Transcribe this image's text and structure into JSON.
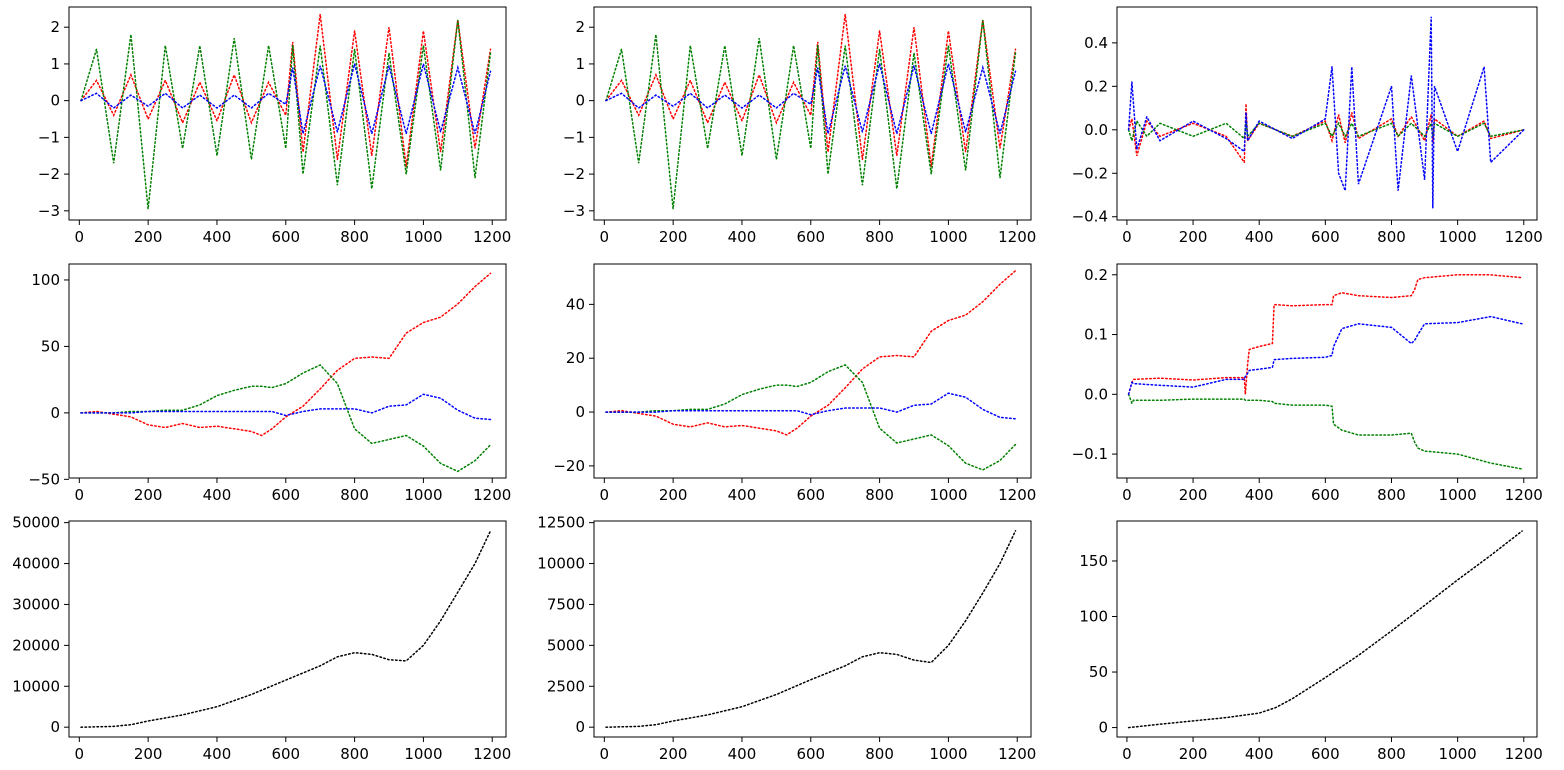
{
  "chart_data": [
    {
      "type": "line",
      "line_style": "dotted",
      "x": [
        5,
        50,
        100,
        150,
        200,
        250,
        300,
        350,
        400,
        450,
        500,
        550,
        600,
        620,
        650,
        700,
        750,
        800,
        850,
        900,
        950,
        1000,
        1050,
        1100,
        1150,
        1195
      ],
      "series": [
        {
          "color": "#ff0000",
          "values": [
            0.0,
            0.55,
            -0.4,
            0.7,
            -0.5,
            0.55,
            -0.6,
            0.5,
            -0.55,
            0.7,
            -0.6,
            0.5,
            -0.4,
            1.6,
            -1.4,
            2.35,
            -1.6,
            1.9,
            -1.5,
            2.0,
            -1.8,
            1.9,
            -1.4,
            2.2,
            -1.3,
            1.4
          ]
        },
        {
          "color": "#008000",
          "values": [
            0.0,
            1.4,
            -1.7,
            1.8,
            -2.95,
            1.5,
            -1.3,
            1.5,
            -1.5,
            1.7,
            -1.6,
            1.5,
            -1.3,
            1.5,
            -2.0,
            1.5,
            -2.3,
            1.4,
            -2.4,
            1.3,
            -2.0,
            1.5,
            -1.9,
            2.2,
            -2.1,
            1.3
          ]
        },
        {
          "color": "#0000ff",
          "values": [
            0.0,
            0.2,
            -0.2,
            0.15,
            -0.15,
            0.2,
            -0.2,
            0.15,
            -0.2,
            0.15,
            -0.2,
            0.2,
            -0.1,
            0.9,
            -0.9,
            0.95,
            -0.85,
            1.0,
            -0.9,
            0.95,
            -0.9,
            1.0,
            -0.85,
            0.9,
            -0.9,
            0.8
          ]
        }
      ],
      "xlim": [
        -30,
        1240
      ],
      "ylim": [
        -3.25,
        2.55
      ],
      "xticks": [
        0,
        200,
        400,
        600,
        800,
        1000,
        1200
      ],
      "yticks": [
        -3,
        -2,
        -1,
        0,
        1,
        2
      ]
    },
    {
      "type": "line",
      "line_style": "dotted",
      "x": [
        5,
        50,
        100,
        150,
        200,
        250,
        300,
        350,
        400,
        450,
        500,
        550,
        600,
        620,
        650,
        700,
        750,
        800,
        850,
        900,
        950,
        1000,
        1050,
        1100,
        1150,
        1195
      ],
      "series": [
        {
          "color": "#ff0000",
          "values": [
            0.0,
            0.55,
            -0.4,
            0.7,
            -0.5,
            0.55,
            -0.6,
            0.5,
            -0.55,
            0.7,
            -0.6,
            0.5,
            -0.4,
            1.6,
            -1.4,
            2.35,
            -1.6,
            1.9,
            -1.5,
            2.0,
            -1.8,
            1.9,
            -1.4,
            2.2,
            -1.3,
            1.4
          ]
        },
        {
          "color": "#008000",
          "values": [
            0.0,
            1.4,
            -1.7,
            1.8,
            -2.95,
            1.5,
            -1.3,
            1.5,
            -1.5,
            1.7,
            -1.6,
            1.5,
            -1.3,
            1.5,
            -2.0,
            1.5,
            -2.3,
            1.4,
            -2.4,
            1.3,
            -2.0,
            1.5,
            -1.9,
            2.2,
            -2.1,
            1.3
          ]
        },
        {
          "color": "#0000ff",
          "values": [
            0.0,
            0.2,
            -0.2,
            0.15,
            -0.15,
            0.2,
            -0.2,
            0.15,
            -0.2,
            0.15,
            -0.2,
            0.2,
            -0.1,
            0.9,
            -0.9,
            0.95,
            -0.85,
            1.0,
            -0.9,
            0.95,
            -0.9,
            1.0,
            -0.85,
            0.9,
            -0.9,
            0.8
          ]
        }
      ],
      "xlim": [
        -30,
        1240
      ],
      "ylim": [
        -3.25,
        2.55
      ],
      "xticks": [
        0,
        200,
        400,
        600,
        800,
        1000,
        1200
      ],
      "yticks": [
        -3,
        -2,
        -1,
        0,
        1,
        2
      ]
    },
    {
      "type": "line",
      "line_style": "dotted",
      "x": [
        5,
        15,
        30,
        60,
        100,
        200,
        300,
        355,
        360,
        365,
        400,
        500,
        600,
        620,
        640,
        660,
        680,
        700,
        800,
        820,
        860,
        900,
        920,
        925,
        930,
        1000,
        1080,
        1100,
        1200
      ],
      "series": [
        {
          "color": "#ff0000",
          "values": [
            0.0,
            0.05,
            -0.12,
            0.04,
            -0.03,
            0.03,
            -0.03,
            -0.15,
            0.12,
            -0.05,
            0.03,
            -0.03,
            0.04,
            -0.05,
            0.07,
            -0.06,
            0.08,
            -0.04,
            0.05,
            -0.03,
            0.06,
            -0.05,
            0.07,
            -0.06,
            0.05,
            -0.03,
            0.04,
            -0.04,
            0.0
          ]
        },
        {
          "color": "#008000",
          "values": [
            0.0,
            -0.05,
            0.04,
            -0.03,
            0.03,
            -0.03,
            0.03,
            -0.04,
            0.04,
            -0.03,
            0.03,
            -0.03,
            0.03,
            -0.03,
            0.03,
            -0.03,
            0.03,
            -0.03,
            0.03,
            -0.03,
            0.03,
            -0.03,
            0.03,
            -0.03,
            0.03,
            -0.03,
            0.03,
            -0.03,
            0.0
          ]
        },
        {
          "color": "#0000ff",
          "values": [
            0.0,
            0.22,
            -0.09,
            0.06,
            -0.05,
            0.04,
            -0.04,
            -0.1,
            0.08,
            -0.05,
            0.04,
            -0.04,
            0.05,
            0.29,
            -0.2,
            -0.28,
            0.29,
            -0.25,
            0.2,
            -0.28,
            0.25,
            -0.23,
            0.52,
            -0.36,
            0.2,
            -0.1,
            0.29,
            -0.15,
            0.0
          ]
        }
      ],
      "xlim": [
        -30,
        1240
      ],
      "ylim": [
        -0.415,
        0.565
      ],
      "xticks": [
        0,
        200,
        400,
        600,
        800,
        1000,
        1200
      ],
      "yticks": [
        -0.4,
        -0.2,
        0.0,
        0.2,
        0.4
      ]
    },
    {
      "type": "line",
      "line_style": "dotted",
      "x": [
        5,
        50,
        100,
        150,
        200,
        250,
        300,
        350,
        400,
        450,
        500,
        530,
        560,
        600,
        650,
        700,
        750,
        800,
        850,
        900,
        950,
        1000,
        1050,
        1100,
        1150,
        1195
      ],
      "series": [
        {
          "color": "#ff0000",
          "values": [
            0,
            1,
            -1,
            -3,
            -9,
            -11,
            -8,
            -11,
            -10,
            -12,
            -14,
            -17,
            -12,
            -3,
            5,
            18,
            32,
            41,
            42,
            41,
            60,
            68,
            72,
            82,
            95,
            105
          ]
        },
        {
          "color": "#008000",
          "values": [
            0,
            0,
            0,
            1,
            1,
            2,
            2,
            6,
            13,
            17,
            20,
            20,
            19,
            22,
            30,
            36,
            22,
            -12,
            -23,
            -20,
            -17,
            -25,
            -38,
            -44,
            -36,
            -24
          ]
        },
        {
          "color": "#0000ff",
          "values": [
            0,
            0,
            0,
            0,
            1,
            1,
            1,
            1,
            1,
            1,
            1,
            1,
            1,
            -2,
            1,
            3,
            3,
            3,
            0,
            5,
            6,
            14,
            11,
            2,
            -4,
            -5
          ]
        }
      ],
      "xlim": [
        -30,
        1240
      ],
      "ylim": [
        -49,
        112
      ],
      "xticks": [
        0,
        200,
        400,
        600,
        800,
        1000,
        1200
      ],
      "yticks": [
        -50,
        0,
        50,
        100
      ]
    },
    {
      "type": "line",
      "line_style": "dotted",
      "x": [
        5,
        50,
        100,
        150,
        200,
        250,
        300,
        350,
        400,
        450,
        500,
        530,
        560,
        600,
        650,
        700,
        750,
        800,
        850,
        900,
        950,
        1000,
        1050,
        1100,
        1150,
        1195
      ],
      "series": [
        {
          "color": "#ff0000",
          "values": [
            0,
            0.5,
            -0.5,
            -1.5,
            -4.5,
            -5.5,
            -4,
            -5.5,
            -5,
            -6,
            -7,
            -8.5,
            -6,
            -1.5,
            2.5,
            9,
            16,
            20.5,
            21,
            20.5,
            30,
            34,
            36,
            41,
            47.5,
            52.5
          ]
        },
        {
          "color": "#008000",
          "values": [
            0,
            0,
            0,
            0.5,
            0.5,
            1,
            1,
            3,
            6.5,
            8.5,
            10,
            10,
            9.5,
            11,
            15,
            17.5,
            11,
            -6,
            -11.5,
            -10,
            -8.5,
            -12.5,
            -19,
            -21.5,
            -18,
            -12
          ]
        },
        {
          "color": "#0000ff",
          "values": [
            0,
            0,
            0,
            0,
            0.5,
            0.5,
            0.5,
            0.5,
            0.5,
            0.5,
            0.5,
            0.5,
            0.5,
            -1,
            0.5,
            1.5,
            1.5,
            1.5,
            0,
            2.5,
            3,
            7,
            5.5,
            1,
            -2,
            -2.5
          ]
        }
      ],
      "xlim": [
        -30,
        1240
      ],
      "ylim": [
        -24.5,
        55
      ],
      "xticks": [
        0,
        200,
        400,
        600,
        800,
        1000,
        1200
      ],
      "yticks": [
        -20,
        0,
        20,
        40
      ]
    },
    {
      "type": "line",
      "line_style": "dotted",
      "x": [
        5,
        15,
        20,
        100,
        200,
        300,
        355,
        358,
        365,
        370,
        400,
        440,
        445,
        500,
        600,
        620,
        625,
        650,
        700,
        800,
        860,
        870,
        880,
        900,
        1000,
        1100,
        1195
      ],
      "series": [
        {
          "color": "#ff0000",
          "values": [
            0.0,
            0.02,
            0.025,
            0.027,
            0.024,
            0.028,
            0.028,
            0.0,
            0.05,
            0.075,
            0.08,
            0.085,
            0.15,
            0.148,
            0.15,
            0.15,
            0.165,
            0.17,
            0.165,
            0.162,
            0.165,
            0.175,
            0.192,
            0.195,
            0.2,
            0.2,
            0.195
          ]
        },
        {
          "color": "#008000",
          "values": [
            0.0,
            -0.015,
            -0.01,
            -0.01,
            -0.008,
            -0.008,
            -0.008,
            -0.01,
            -0.01,
            -0.01,
            -0.01,
            -0.012,
            -0.015,
            -0.018,
            -0.018,
            -0.02,
            -0.05,
            -0.06,
            -0.068,
            -0.068,
            -0.065,
            -0.08,
            -0.09,
            -0.095,
            -0.1,
            -0.115,
            -0.125
          ]
        },
        {
          "color": "#0000ff",
          "values": [
            0.0,
            0.02,
            0.018,
            0.015,
            0.012,
            0.025,
            0.025,
            0.03,
            0.035,
            0.04,
            0.042,
            0.045,
            0.058,
            0.06,
            0.062,
            0.065,
            0.08,
            0.11,
            0.118,
            0.112,
            0.085,
            0.09,
            0.1,
            0.118,
            0.12,
            0.13,
            0.118
          ]
        }
      ],
      "xlim": [
        -30,
        1240
      ],
      "ylim": [
        -0.14,
        0.218
      ],
      "xticks": [
        0,
        200,
        400,
        600,
        800,
        1000,
        1200
      ],
      "yticks": [
        -0.1,
        0.0,
        0.1,
        0.2
      ]
    },
    {
      "type": "line",
      "line_style": "dotted",
      "x": [
        5,
        100,
        150,
        200,
        300,
        400,
        500,
        600,
        700,
        750,
        800,
        850,
        900,
        950,
        1000,
        1050,
        1100,
        1150,
        1195
      ],
      "series": [
        {
          "color": "#000000",
          "values": [
            0,
            200,
            600,
            1500,
            3000,
            5000,
            8000,
            11500,
            15000,
            17200,
            18200,
            17800,
            16500,
            16200,
            20000,
            26000,
            33000,
            40000,
            48000
          ]
        }
      ],
      "xlim": [
        -30,
        1240
      ],
      "ylim": [
        -2400,
        50400
      ],
      "xticks": [
        0,
        200,
        400,
        600,
        800,
        1000,
        1200
      ],
      "yticks": [
        0,
        10000,
        20000,
        30000,
        40000,
        50000
      ]
    },
    {
      "type": "line",
      "line_style": "dotted",
      "x": [
        5,
        100,
        150,
        200,
        300,
        400,
        500,
        600,
        700,
        750,
        800,
        850,
        900,
        950,
        1000,
        1050,
        1100,
        1150,
        1195
      ],
      "series": [
        {
          "color": "#000000",
          "values": [
            0,
            50,
            150,
            380,
            750,
            1250,
            2000,
            2900,
            3750,
            4300,
            4550,
            4450,
            4100,
            3950,
            5000,
            6500,
            8200,
            10000,
            12000
          ]
        }
      ],
      "xlim": [
        -30,
        1240
      ],
      "ylim": [
        -600,
        12600
      ],
      "xticks": [
        0,
        200,
        400,
        600,
        800,
        1000,
        1200
      ],
      "yticks": [
        0,
        2500,
        5000,
        7500,
        10000,
        12500
      ]
    },
    {
      "type": "line",
      "line_style": "dotted",
      "x": [
        5,
        100,
        200,
        300,
        400,
        450,
        500,
        600,
        700,
        800,
        900,
        1000,
        1100,
        1195
      ],
      "series": [
        {
          "color": "#000000",
          "values": [
            0,
            3,
            6,
            9,
            13,
            18,
            26,
            45,
            65,
            87,
            110,
            133,
            155,
            177
          ]
        }
      ],
      "xlim": [
        -30,
        1240
      ],
      "ylim": [
        -8.5,
        186
      ],
      "xticks": [
        0,
        200,
        400,
        600,
        800,
        1000,
        1200
      ],
      "yticks": [
        0,
        50,
        100,
        150
      ]
    }
  ]
}
